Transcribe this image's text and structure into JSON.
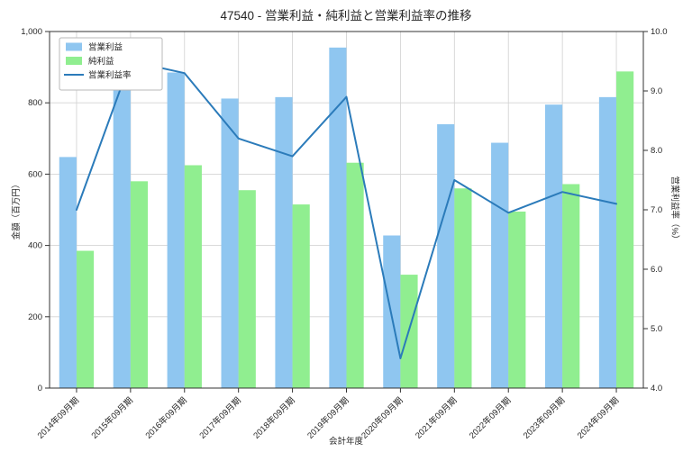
{
  "chart_data": {
    "type": "bar",
    "title": "47540 - 営業利益・純利益と営業利益率の推移",
    "xlabel": "会計年度",
    "ylabel_left": "金額（百万円）",
    "ylabel_right": "営業利益率（%）",
    "categories": [
      "2014年09月期",
      "2015年09月期",
      "2016年09月期",
      "2017年09月期",
      "2018年09月期",
      "2019年09月期",
      "2020年09月期",
      "2021年09月期",
      "2022年09月期",
      "2023年09月期",
      "2024年09月期"
    ],
    "series": [
      {
        "name": "営業利益",
        "kind": "bar",
        "axis": "left",
        "color": "#8FC6F0",
        "values": [
          648,
          922,
          885,
          812,
          816,
          955,
          428,
          740,
          688,
          795,
          816
        ]
      },
      {
        "name": "純利益",
        "kind": "bar",
        "axis": "left",
        "color": "#90EE90",
        "values": [
          385,
          580,
          625,
          555,
          515,
          632,
          318,
          560,
          495,
          572,
          888
        ]
      },
      {
        "name": "営業利益率",
        "kind": "line",
        "axis": "right",
        "color": "#2B7BBA",
        "values": [
          7.0,
          9.5,
          9.3,
          8.2,
          7.9,
          8.9,
          4.5,
          7.5,
          6.95,
          7.3,
          7.1
        ]
      }
    ],
    "left_axis": {
      "min": 0,
      "max": 1000,
      "tick_values": [
        0,
        200,
        400,
        600,
        800,
        1000
      ],
      "tick_labels": [
        "0",
        "200",
        "400",
        "600",
        "800",
        "1,000"
      ]
    },
    "right_axis": {
      "min": 4.0,
      "max": 10.0,
      "tick_values": [
        4,
        5,
        6,
        7,
        8,
        9,
        10
      ],
      "tick_labels": [
        "4.0",
        "5.0",
        "6.0",
        "7.0",
        "8.0",
        "9.0",
        "10.0"
      ]
    },
    "grid": true,
    "legend_position": "upper left",
    "colors": {
      "grid": "#D4D4D4",
      "spine": "#333333",
      "legend_border": "#B8B8B8",
      "text": "#262626"
    }
  }
}
